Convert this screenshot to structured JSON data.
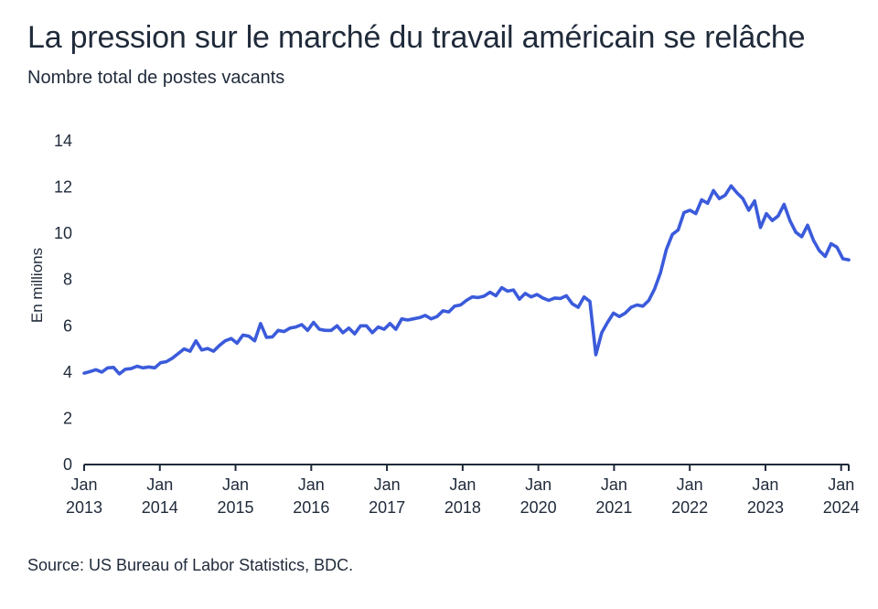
{
  "chart_data": {
    "type": "line",
    "title": "La pression sur le marché du travail américain se relâche",
    "subtitle": "Nombre total de postes vacants",
    "ylabel": "En millions",
    "source": "Source: US Bureau of Labor Statistics, BDC.",
    "ylim": [
      0,
      14
    ],
    "yticks": [
      0,
      2,
      4,
      6,
      8,
      10,
      12,
      14
    ],
    "grid": false,
    "line_color": "#3b5bdb",
    "x_ticks": [
      {
        "line1": "Jan",
        "line2": "2013"
      },
      {
        "line1": "Jan",
        "line2": "2014"
      },
      {
        "line1": "Jan",
        "line2": "2015"
      },
      {
        "line1": "Jan",
        "line2": "2016"
      },
      {
        "line1": "Jan",
        "line2": "2017"
      },
      {
        "line1": "Jan",
        "line2": "2018"
      },
      {
        "line1": "Jan",
        "line2": "2020"
      },
      {
        "line1": "Jan",
        "line2": "2021"
      },
      {
        "line1": "Jan",
        "line2": "2022"
      },
      {
        "line1": "Jan",
        "line2": "2023"
      },
      {
        "line1": "Jan",
        "line2": "2024"
      }
    ],
    "series": [
      {
        "values": [
          3.95,
          4.02,
          4.1,
          4.0,
          4.18,
          4.2,
          3.92,
          4.12,
          4.15,
          4.25,
          4.18,
          4.22,
          4.18,
          4.4,
          4.45,
          4.6,
          4.8,
          5.0,
          4.9,
          5.35,
          4.95,
          5.02,
          4.9,
          5.15,
          5.35,
          5.45,
          5.25,
          5.6,
          5.55,
          5.35,
          6.1,
          5.5,
          5.52,
          5.8,
          5.75,
          5.9,
          5.95,
          6.05,
          5.8,
          6.15,
          5.85,
          5.8,
          5.8,
          6.0,
          5.7,
          5.9,
          5.65,
          6.0,
          6.0,
          5.7,
          5.95,
          5.85,
          6.1,
          5.85,
          6.3,
          6.25,
          6.3,
          6.35,
          6.45,
          6.3,
          6.4,
          6.65,
          6.6,
          6.85,
          6.9,
          7.1,
          7.25,
          7.22,
          7.28,
          7.45,
          7.3,
          7.65,
          7.5,
          7.55,
          7.15,
          7.4,
          7.25,
          7.35,
          7.2,
          7.1,
          7.2,
          7.18,
          7.3,
          6.95,
          6.8,
          7.25,
          7.05,
          4.75,
          5.7,
          6.15,
          6.55,
          6.4,
          6.55,
          6.8,
          6.9,
          6.85,
          7.1,
          7.6,
          8.3,
          9.3,
          9.95,
          10.15,
          10.9,
          11.0,
          10.85,
          11.45,
          11.3,
          11.85,
          11.5,
          11.65,
          12.05,
          11.75,
          11.5,
          11.0,
          11.4,
          10.25,
          10.85,
          10.55,
          10.75,
          11.25,
          10.55,
          10.05,
          9.85,
          10.35,
          9.7,
          9.25,
          9.0,
          9.55,
          9.4,
          8.9,
          8.85
        ]
      }
    ]
  }
}
